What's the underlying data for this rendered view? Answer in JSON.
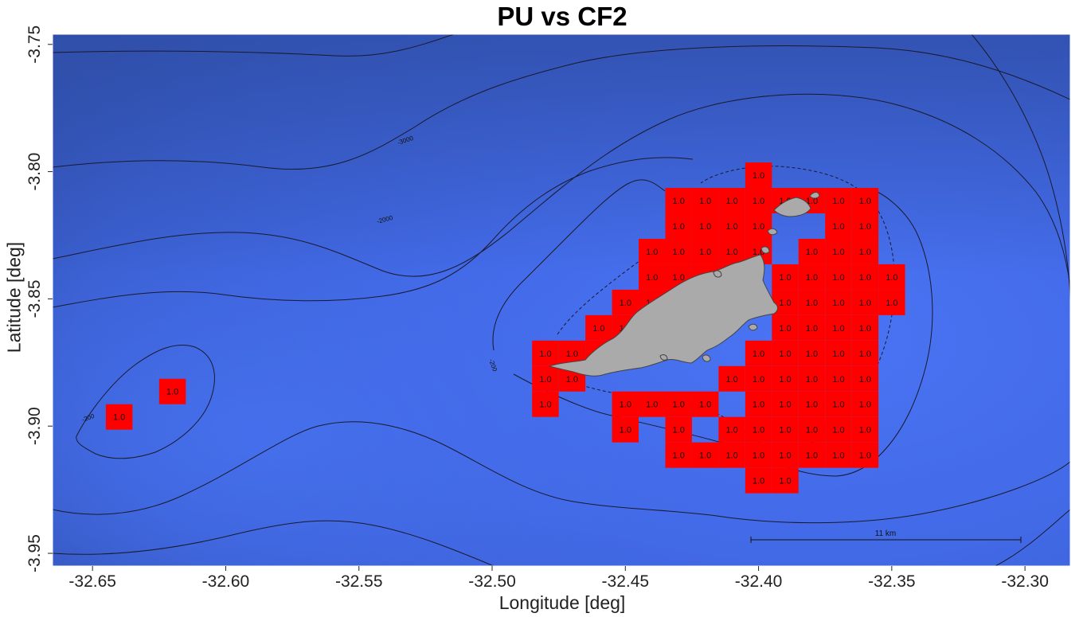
{
  "title": "PU vs CF2",
  "axes": {
    "xlabel": "Longitude [deg]",
    "ylabel": "Latitude [deg]",
    "xlim": [
      -32.665,
      -32.283
    ],
    "ylim": [
      -3.955,
      -3.746
    ],
    "x_ticks": [
      "-32.65",
      "-32.60",
      "-32.55",
      "-32.50",
      "-32.45",
      "-32.40",
      "-32.35",
      "-32.30"
    ],
    "x_tick_values": [
      -32.65,
      -32.6,
      -32.55,
      -32.5,
      -32.45,
      -32.4,
      -32.35,
      -32.3
    ],
    "y_ticks": [
      "-3.75",
      "-3.80",
      "-3.85",
      "-3.90",
      "-3.95"
    ],
    "y_tick_values": [
      -3.75,
      -3.8,
      -3.85,
      -3.9,
      -3.95
    ]
  },
  "colors": {
    "ocean_deep": "#3357b8",
    "ocean_shallow": "#4870ef",
    "cell": "#ff0000",
    "land": "#aaaaaa",
    "contour": "#1a1a2e"
  },
  "contour_labels": [
    "-3000",
    "-2000",
    "-200",
    "-200"
  ],
  "scale_bar": {
    "label": "11 km"
  },
  "cell_value": "1.0",
  "cells": {
    "lon0": -32.665,
    "dlon": 0.01,
    "lat0": -3.7464,
    "dlat": 0.01,
    "rows": [
      {
        "row": 5,
        "cols": [
          26
        ]
      },
      {
        "row": 6,
        "cols": [
          23,
          24,
          25,
          26,
          27,
          28,
          29,
          30
        ]
      },
      {
        "row": 7,
        "cols": [
          23,
          24,
          25,
          26,
          29,
          30
        ]
      },
      {
        "row": 8,
        "cols": [
          22,
          23,
          24,
          25,
          26,
          28,
          29,
          30
        ]
      },
      {
        "row": 9,
        "cols": [
          22,
          23,
          24,
          25,
          27,
          28,
          29,
          30,
          31
        ]
      },
      {
        "row": 10,
        "cols": [
          21,
          22,
          23,
          27,
          28,
          29,
          30,
          31
        ]
      },
      {
        "row": 11,
        "cols": [
          20,
          21,
          27,
          28,
          29,
          30
        ]
      },
      {
        "row": 12,
        "cols": [
          18,
          19,
          20,
          26,
          27,
          28,
          29,
          30
        ]
      },
      {
        "row": 13,
        "cols": [
          18,
          19,
          25,
          26,
          27,
          28,
          29,
          30
        ]
      },
      {
        "row": 14,
        "cols": [
          18,
          21,
          22,
          23,
          24,
          26,
          27,
          28,
          29,
          30
        ]
      },
      {
        "row": 15,
        "cols": [
          21,
          23,
          25,
          26,
          27,
          28,
          29,
          30
        ]
      },
      {
        "row": 16,
        "cols": [
          23,
          24,
          25,
          26,
          27,
          28,
          29,
          30
        ]
      },
      {
        "row": 17,
        "cols": [
          26,
          27
        ]
      }
    ],
    "extra": [
      {
        "lon": -32.62,
        "lat": -3.8864
      },
      {
        "lon": -32.64,
        "lat": -3.8964
      }
    ]
  }
}
